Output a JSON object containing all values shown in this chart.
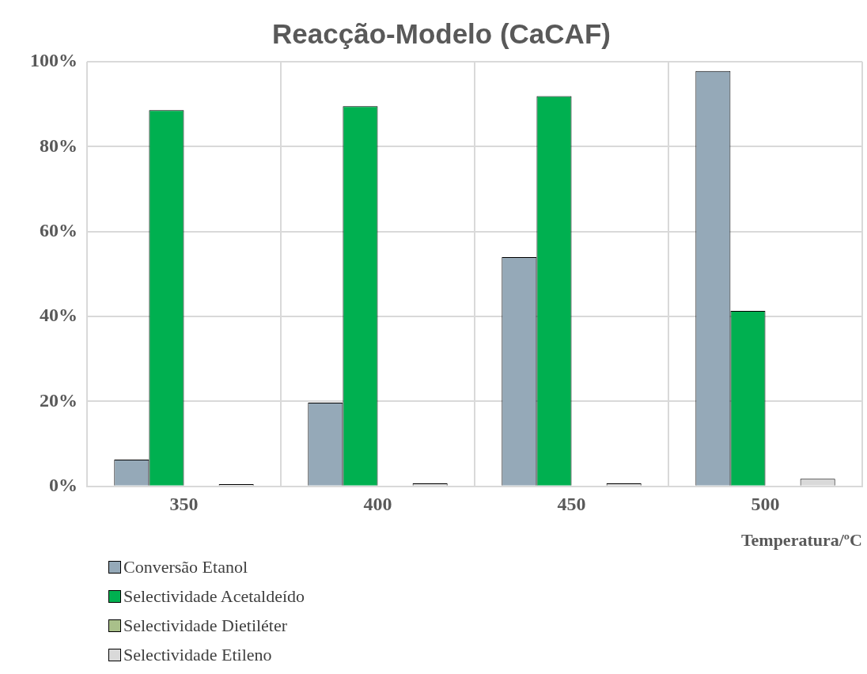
{
  "chart_data": {
    "type": "bar",
    "title": "Reacção-Modelo (CaCAF)",
    "xlabel": "Temperatura/ºC",
    "categories": [
      "350",
      "400",
      "450",
      "500"
    ],
    "series": [
      {
        "name": "Conversão Etanol",
        "color": "#95a9b8",
        "values": [
          6.3,
          19.7,
          54.0,
          97.8
        ]
      },
      {
        "name": "Selectividade Acetaldeído",
        "color": "#00b050",
        "values": [
          88.6,
          89.5,
          91.9,
          41.3
        ]
      },
      {
        "name": "Selectividade Dietiléter",
        "color": "#a9c08a",
        "values": [
          null,
          null,
          null,
          null
        ]
      },
      {
        "name": "Selectividade Etileno",
        "color": "#d9d9d9",
        "values": [
          0.5,
          0.7,
          0.7,
          1.8
        ]
      }
    ],
    "ylim": [
      0,
      100
    ],
    "yticks": [
      {
        "value": 0,
        "label": "0%"
      },
      {
        "value": 20,
        "label": "20%"
      },
      {
        "value": 40,
        "label": "40%"
      },
      {
        "value": 60,
        "label": "60%"
      },
      {
        "value": 80,
        "label": "80%"
      },
      {
        "value": 100,
        "label": "100%"
      }
    ],
    "grid": true,
    "legend": "bottom left"
  }
}
